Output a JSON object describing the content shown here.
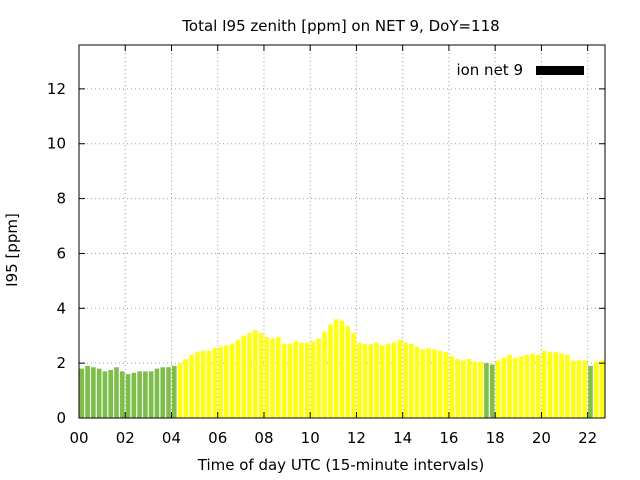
{
  "chart_data": {
    "type": "bar",
    "title": "Total I95 zenith [ppm] on NET 9, DoY=118",
    "xlabel": "Time of day UTC (15-minute intervals)",
    "ylabel": "I95 [ppm]",
    "xlim": [
      0,
      22.75
    ],
    "ylim": [
      0,
      13.6
    ],
    "grid": true,
    "legend": {
      "position": "top-right",
      "entries": [
        {
          "label": "ion net 9",
          "color": "#000000"
        }
      ]
    },
    "xticks": [
      0,
      2,
      4,
      6,
      8,
      10,
      12,
      14,
      16,
      18,
      20,
      22
    ],
    "xtick_labels": [
      "00",
      "02",
      "04",
      "06",
      "08",
      "10",
      "12",
      "14",
      "16",
      "18",
      "20",
      "22"
    ],
    "yticks": [
      0,
      2,
      4,
      6,
      8,
      10,
      12
    ],
    "ytick_labels": [
      "0",
      "2",
      "4",
      "6",
      "8",
      "10",
      "12"
    ],
    "colors": {
      "green": "#7ebe4a",
      "yellow": "#ffff14",
      "grid": "#a0a0a0",
      "axis": "#000000"
    },
    "interval_hours": 0.25,
    "values": [
      1.8,
      1.9,
      1.85,
      1.8,
      1.7,
      1.75,
      1.85,
      1.7,
      1.6,
      1.65,
      1.7,
      1.7,
      1.7,
      1.8,
      1.85,
      1.85,
      1.9,
      2.0,
      2.15,
      2.3,
      2.4,
      2.45,
      2.45,
      2.55,
      2.6,
      2.65,
      2.7,
      2.85,
      3.0,
      3.1,
      3.2,
      3.1,
      2.95,
      2.9,
      2.95,
      2.7,
      2.7,
      2.8,
      2.75,
      2.75,
      2.8,
      2.9,
      3.15,
      3.4,
      3.6,
      3.55,
      3.35,
      3.1,
      2.75,
      2.7,
      2.7,
      2.75,
      2.65,
      2.7,
      2.75,
      2.85,
      2.75,
      2.7,
      2.6,
      2.5,
      2.55,
      2.5,
      2.45,
      2.4,
      2.25,
      2.15,
      2.1,
      2.15,
      2.05,
      2.05,
      2.0,
      1.95,
      2.1,
      2.2,
      2.3,
      2.2,
      2.25,
      2.3,
      2.35,
      2.3,
      2.45,
      2.4,
      2.4,
      2.35,
      2.3,
      2.1,
      2.1,
      2.1,
      1.9,
      2.05,
      2.1
    ],
    "bar_colors": [
      "green",
      "green",
      "green",
      "green",
      "green",
      "green",
      "green",
      "green",
      "green",
      "green",
      "green",
      "green",
      "green",
      "green",
      "green",
      "green",
      "green",
      "yellow",
      "yellow",
      "yellow",
      "yellow",
      "yellow",
      "yellow",
      "yellow",
      "yellow",
      "yellow",
      "yellow",
      "yellow",
      "yellow",
      "yellow",
      "yellow",
      "yellow",
      "yellow",
      "yellow",
      "yellow",
      "yellow",
      "yellow",
      "yellow",
      "yellow",
      "yellow",
      "yellow",
      "yellow",
      "yellow",
      "yellow",
      "yellow",
      "yellow",
      "yellow",
      "yellow",
      "yellow",
      "yellow",
      "yellow",
      "yellow",
      "yellow",
      "yellow",
      "yellow",
      "yellow",
      "yellow",
      "yellow",
      "yellow",
      "yellow",
      "yellow",
      "yellow",
      "yellow",
      "yellow",
      "yellow",
      "yellow",
      "yellow",
      "yellow",
      "yellow",
      "yellow",
      "green",
      "green",
      "yellow",
      "yellow",
      "yellow",
      "yellow",
      "yellow",
      "yellow",
      "yellow",
      "yellow",
      "yellow",
      "yellow",
      "yellow",
      "yellow",
      "yellow",
      "yellow",
      "yellow",
      "yellow",
      "green",
      "yellow",
      "yellow"
    ]
  }
}
